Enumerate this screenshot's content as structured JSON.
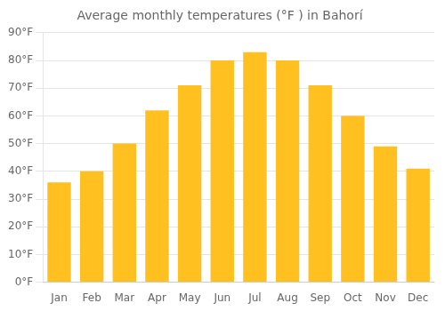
{
  "chart_data": {
    "type": "bar",
    "title": "Average monthly temperatures (°F ) in Bahorí",
    "categories": [
      "Jan",
      "Feb",
      "Mar",
      "Apr",
      "May",
      "Jun",
      "Jul",
      "Aug",
      "Sep",
      "Oct",
      "Nov",
      "Dec"
    ],
    "values": [
      36,
      40,
      50,
      62,
      71,
      80,
      83,
      80,
      71,
      60,
      49,
      41
    ],
    "color": "#FFC020",
    "ylim": [
      0,
      90
    ],
    "yticks": [
      {
        "value": 0,
        "label": "0°F"
      },
      {
        "value": 10,
        "label": "10°F"
      },
      {
        "value": 20,
        "label": "20°F"
      },
      {
        "value": 30,
        "label": "30°F"
      },
      {
        "value": 40,
        "label": "40°F"
      },
      {
        "value": 50,
        "label": "50°F"
      },
      {
        "value": 60,
        "label": "60°F"
      },
      {
        "value": 70,
        "label": "70°F"
      },
      {
        "value": 80,
        "label": "80°F"
      },
      {
        "value": 90,
        "label": "90°F"
      }
    ],
    "grid": true
  }
}
